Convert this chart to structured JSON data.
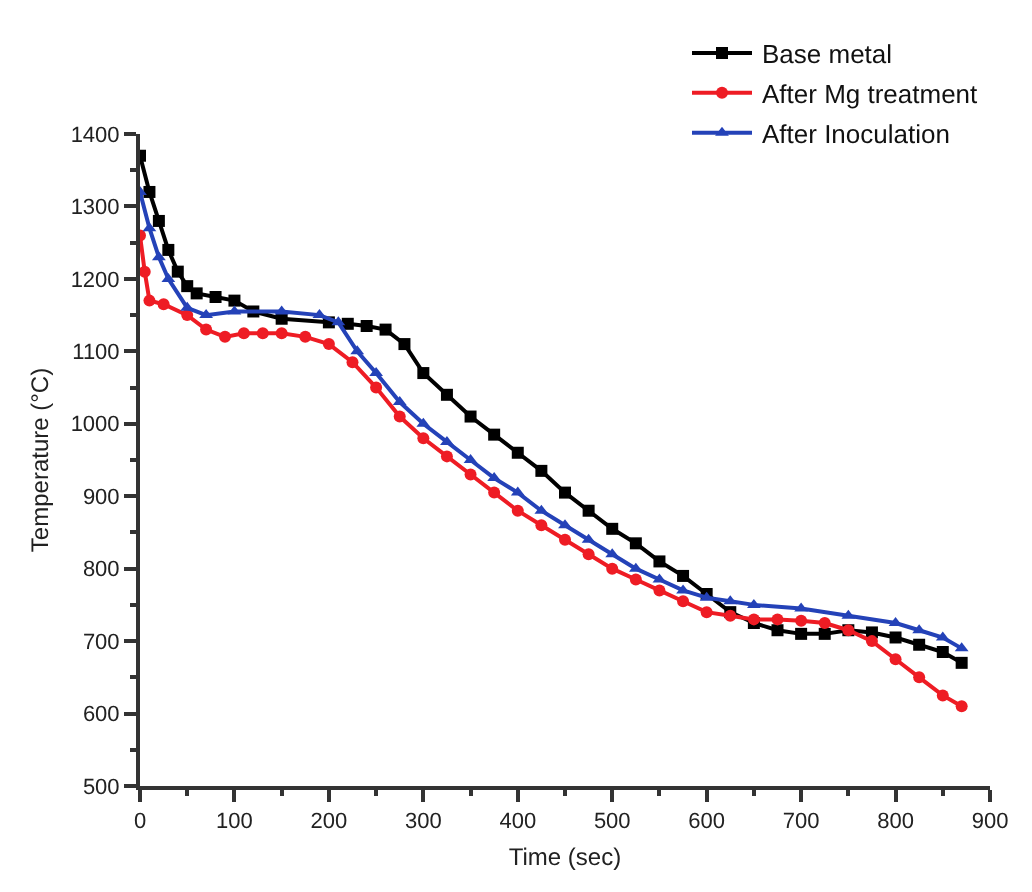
{
  "chart_data": {
    "type": "line",
    "xlabel": "Time (sec)",
    "ylabel": "Temperature (°C)",
    "xlim": [
      0,
      900
    ],
    "xticks": [
      0,
      100,
      200,
      300,
      400,
      500,
      600,
      700,
      800,
      900
    ],
    "ylim": [
      500,
      1400
    ],
    "yticks": [
      500,
      600,
      700,
      800,
      900,
      1000,
      1100,
      1200,
      1300,
      1400
    ],
    "grid": false,
    "legend": "top right",
    "line_style": "solid",
    "series": [
      {
        "name": "Base metal",
        "color": "#000000",
        "marker": "square",
        "x": [
          0,
          10,
          20,
          30,
          40,
          50,
          60,
          80,
          100,
          120,
          150,
          200,
          220,
          240,
          260,
          280,
          300,
          325,
          350,
          375,
          400,
          425,
          450,
          475,
          500,
          525,
          550,
          575,
          600,
          625,
          650,
          675,
          700,
          725,
          750,
          775,
          800,
          825,
          850,
          870
        ],
        "values": [
          1370,
          1320,
          1280,
          1240,
          1210,
          1190,
          1180,
          1175,
          1170,
          1155,
          1145,
          1140,
          1138,
          1135,
          1130,
          1110,
          1070,
          1040,
          1010,
          985,
          960,
          935,
          905,
          880,
          855,
          835,
          810,
          790,
          765,
          740,
          725,
          715,
          710,
          710,
          715,
          712,
          705,
          695,
          685,
          670
        ]
      },
      {
        "name": "After Mg treatment",
        "color": "#ee1c24",
        "marker": "circle",
        "x": [
          0,
          5,
          10,
          25,
          50,
          70,
          90,
          110,
          130,
          150,
          175,
          200,
          225,
          250,
          275,
          300,
          325,
          350,
          375,
          400,
          425,
          450,
          475,
          500,
          525,
          550,
          575,
          600,
          625,
          650,
          675,
          700,
          725,
          750,
          775,
          800,
          825,
          850,
          870
        ],
        "values": [
          1260,
          1210,
          1170,
          1165,
          1150,
          1130,
          1120,
          1125,
          1125,
          1125,
          1120,
          1110,
          1085,
          1050,
          1010,
          980,
          955,
          930,
          905,
          880,
          860,
          840,
          820,
          800,
          785,
          770,
          755,
          740,
          735,
          730,
          730,
          728,
          725,
          715,
          700,
          675,
          650,
          625,
          610
        ]
      },
      {
        "name": "After Inoculation",
        "color": "#2442b8",
        "marker": "triangle",
        "x": [
          0,
          10,
          20,
          30,
          50,
          70,
          100,
          150,
          190,
          210,
          230,
          250,
          275,
          300,
          325,
          350,
          375,
          400,
          425,
          450,
          475,
          500,
          525,
          550,
          575,
          600,
          625,
          650,
          700,
          750,
          800,
          825,
          850,
          870
        ],
        "values": [
          1320,
          1270,
          1230,
          1200,
          1160,
          1150,
          1155,
          1155,
          1150,
          1140,
          1100,
          1070,
          1030,
          1000,
          975,
          950,
          925,
          905,
          880,
          860,
          840,
          820,
          800,
          785,
          770,
          760,
          755,
          750,
          745,
          735,
          725,
          715,
          705,
          690
        ]
      }
    ]
  }
}
